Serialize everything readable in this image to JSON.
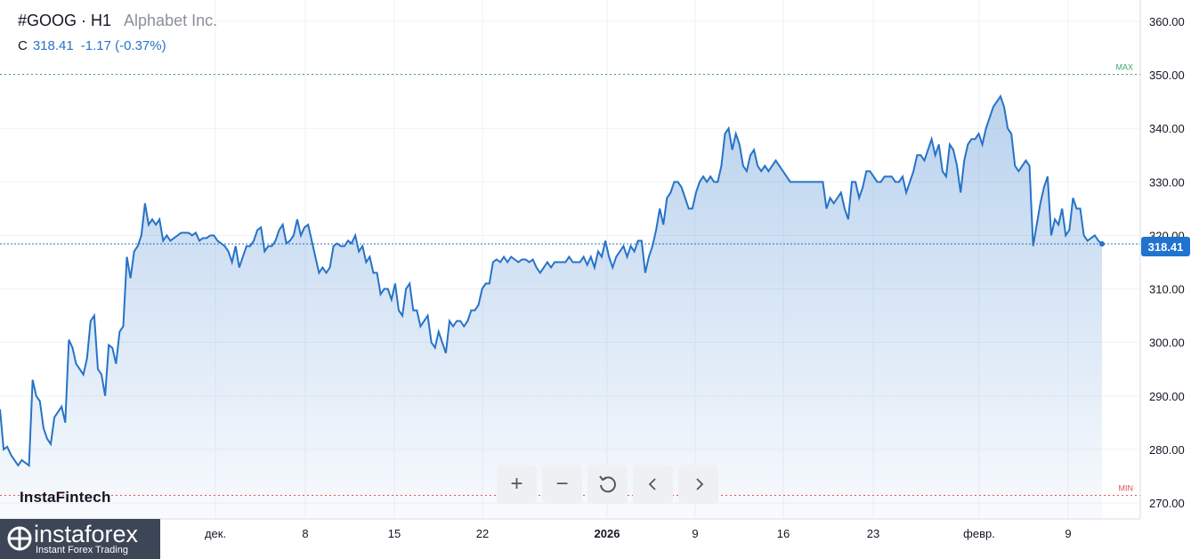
{
  "header": {
    "symbol": "#GOOG · H1",
    "company": "Alphabet Inc.",
    "price_label": "C",
    "price": "318.41",
    "change": "-1.17 (-0.37%)"
  },
  "toolbar": {
    "zoom_in": "+",
    "zoom_out": "−"
  },
  "watermark": "InstaFintech",
  "logo": {
    "name": "instaforex",
    "tagline": "Instant Forex Trading"
  },
  "price_tag": "318.41",
  "colors": {
    "line": "#2673c8",
    "max": "#3fa66b",
    "min": "#e05555",
    "tag": "#2173d0"
  },
  "chart_data": {
    "type": "area",
    "ylim": [
      267,
      364
    ],
    "yticks": [
      270,
      280,
      290,
      300,
      310,
      320,
      330,
      340,
      350,
      360
    ],
    "ytick_labels": [
      "270.00",
      "280.00",
      "290.00",
      "300.00",
      "310.00",
      "320.00",
      "330.00",
      "340.00",
      "350.00",
      "360.00"
    ],
    "xticks": [
      {
        "label": "дек.",
        "bold": false
      },
      {
        "label": "8",
        "bold": false
      },
      {
        "label": "15",
        "bold": false
      },
      {
        "label": "22",
        "bold": false
      },
      {
        "label": "2026",
        "bold": true
      },
      {
        "label": "9",
        "bold": false
      },
      {
        "label": "16",
        "bold": false
      },
      {
        "label": "23",
        "bold": false
      },
      {
        "label": "февр.",
        "bold": false
      },
      {
        "label": "9",
        "bold": false
      }
    ],
    "max_label": "MAX",
    "max_value": 350.1,
    "min_label": "MIN",
    "min_value": 271.4,
    "last_value": 318.41,
    "grid": true,
    "values": [
      287.5,
      280,
      280.5,
      279,
      278,
      277,
      278,
      277.5,
      277,
      293,
      290,
      289,
      284,
      282,
      281,
      286,
      287,
      288,
      285,
      300.5,
      299,
      296,
      295,
      294,
      297,
      304,
      305,
      295,
      294,
      290,
      299.5,
      299,
      296,
      302,
      303,
      316,
      312,
      317,
      318,
      320,
      326,
      322,
      323,
      322,
      323,
      319,
      320,
      319,
      319.5,
      320,
      320.5,
      320.5,
      320.5,
      320,
      320.5,
      319,
      319.5,
      319.5,
      320,
      320,
      319,
      318.5,
      318,
      317,
      315,
      318,
      314,
      316,
      318,
      318,
      319,
      321,
      321.5,
      317,
      318,
      318,
      319,
      321,
      322,
      318.5,
      319,
      320,
      323,
      320,
      321.5,
      322,
      319,
      316,
      313,
      314,
      313,
      314,
      318,
      318.5,
      318,
      318,
      319,
      318.5,
      320,
      317,
      318,
      315,
      316,
      313,
      313,
      309,
      310,
      310,
      308,
      311,
      306,
      305,
      310,
      311,
      306,
      306,
      303,
      304,
      305,
      300,
      299,
      302,
      300,
      298,
      304,
      303,
      304,
      304,
      303,
      304,
      306,
      306,
      307,
      310,
      311,
      311,
      315,
      315.5,
      315,
      316,
      315,
      316,
      315.5,
      315,
      315.5,
      315.5,
      315,
      315.5,
      314,
      313,
      314,
      315,
      314,
      315,
      315,
      315,
      315,
      316,
      315,
      315,
      315,
      316,
      314.5,
      316,
      314,
      317,
      316,
      319,
      316,
      314,
      316,
      317,
      318,
      316,
      318,
      317,
      319,
      319,
      313,
      316,
      318,
      321,
      325,
      322,
      327,
      328,
      330,
      330,
      329,
      327,
      325,
      325,
      328,
      330,
      331,
      330,
      331,
      330,
      330,
      333,
      339,
      340,
      336,
      339,
      337,
      333,
      332,
      335,
      336,
      333,
      332,
      333,
      332,
      333,
      334,
      333,
      332,
      331,
      330,
      330,
      330,
      330,
      330,
      330,
      330,
      330,
      330,
      330,
      325,
      327,
      326,
      327,
      328,
      325,
      323,
      330,
      330,
      327,
      329,
      332,
      332,
      331,
      330,
      330,
      331,
      331,
      331,
      330,
      330,
      331,
      328,
      330,
      332,
      335,
      335,
      334,
      336,
      338,
      335,
      337,
      332,
      331,
      337,
      336,
      333,
      328,
      334,
      337,
      338,
      338,
      339,
      337,
      340,
      342,
      344,
      345,
      346,
      344,
      340,
      339,
      333,
      332,
      333,
      334,
      333,
      318,
      322,
      326,
      329,
      331,
      320,
      323,
      322,
      325,
      320,
      321,
      327,
      325,
      325,
      320,
      319,
      319.5,
      320,
      319,
      318.41
    ]
  }
}
